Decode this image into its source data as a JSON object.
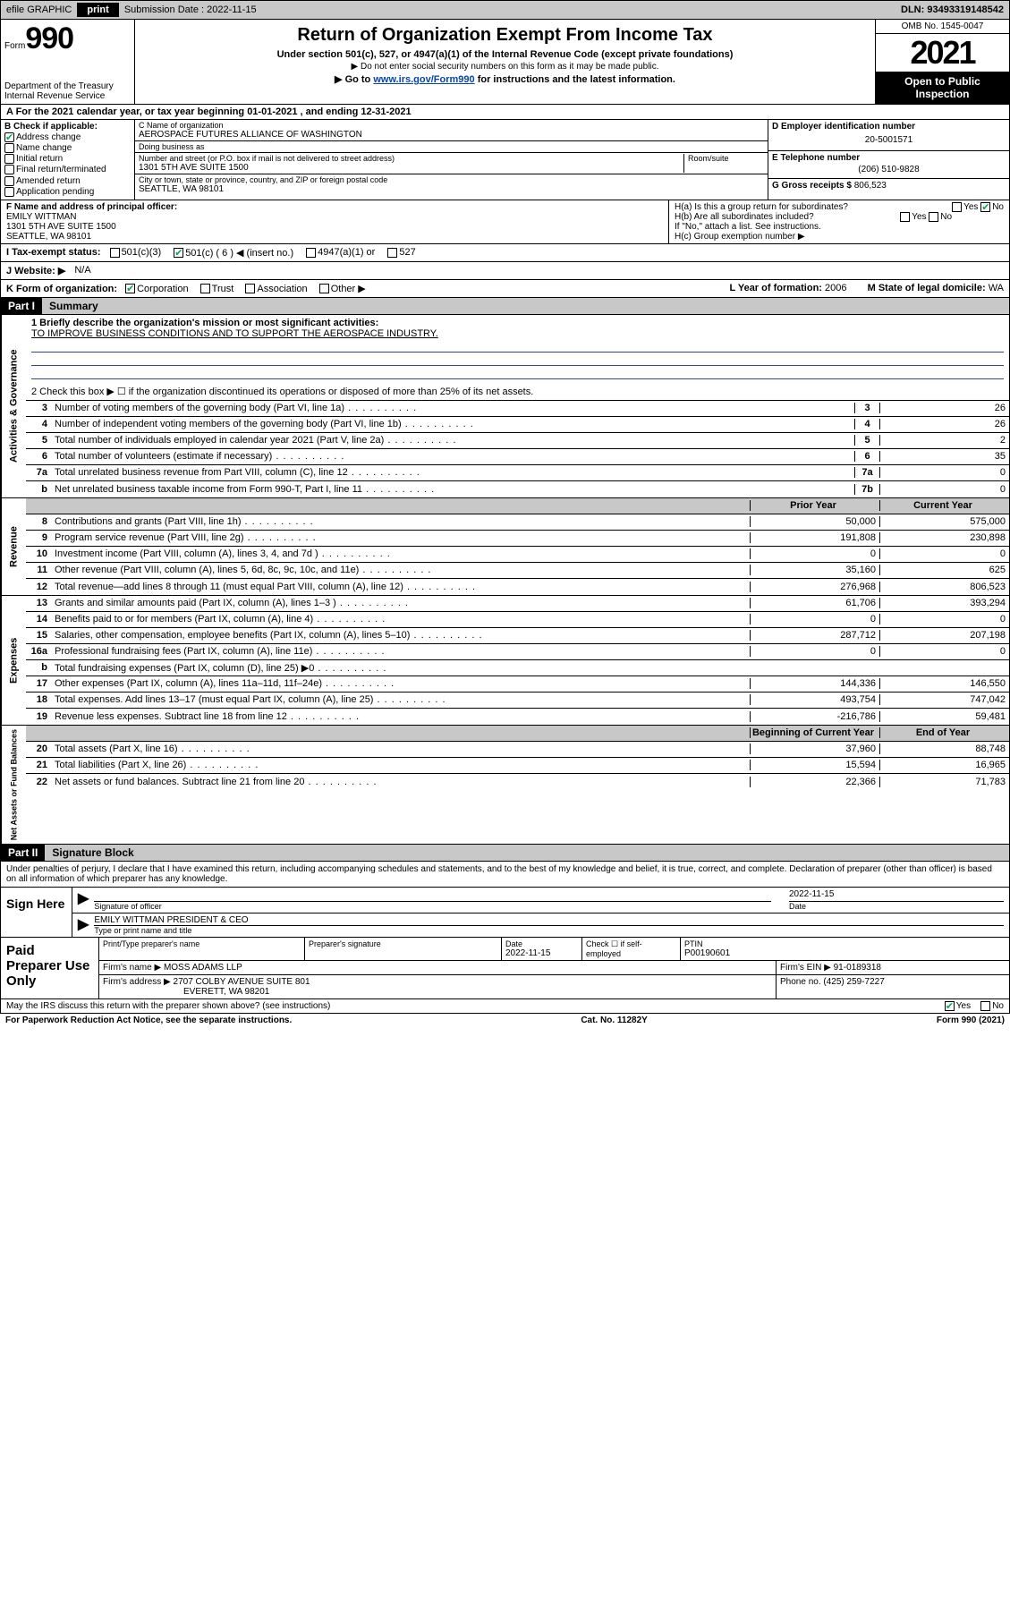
{
  "topbar": {
    "efile": "efile GRAPHIC",
    "print": "print",
    "submission_label": "Submission Date : 2022-11-15",
    "dln": "DLN: 93493319148542"
  },
  "header": {
    "form_prefix": "Form",
    "form_number": "990",
    "dept": "Department of the Treasury\nInternal Revenue Service",
    "title": "Return of Organization Exempt From Income Tax",
    "sub1": "Under section 501(c), 527, or 4947(a)(1) of the Internal Revenue Code (except private foundations)",
    "sub2": "▶ Do not enter social security numbers on this form as it may be made public.",
    "sub3_pre": "▶ Go to ",
    "sub3_link": "www.irs.gov/Form990",
    "sub3_post": " for instructions and the latest information.",
    "omb": "OMB No. 1545-0047",
    "year": "2021",
    "open": "Open to Public Inspection"
  },
  "row_a": "A For the 2021 calendar year, or tax year beginning 01-01-2021   , and ending 12-31-2021",
  "col_b": {
    "label": "B Check if applicable:",
    "items": [
      {
        "txt": "Address change",
        "checked": true
      },
      {
        "txt": "Name change",
        "checked": false
      },
      {
        "txt": "Initial return",
        "checked": false
      },
      {
        "txt": "Final return/terminated",
        "checked": false
      },
      {
        "txt": "Amended return",
        "checked": false
      },
      {
        "txt": "Application pending",
        "checked": false
      }
    ]
  },
  "col_c": {
    "name_hdr": "C Name of organization",
    "name": "AEROSPACE FUTURES ALLIANCE OF WASHINGTON",
    "dba_hdr": "Doing business as",
    "dba": "",
    "addr_hdr": "Number and street (or P.O. box if mail is not delivered to street address)",
    "room_hdr": "Room/suite",
    "addr": "1301 5TH AVE SUITE 1500",
    "city_hdr": "City or town, state or province, country, and ZIP or foreign postal code",
    "city": "SEATTLE, WA  98101"
  },
  "col_de": {
    "d_label": "D Employer identification number",
    "d_val": "20-5001571",
    "e_label": "E Telephone number",
    "e_val": "(206) 510-9828",
    "g_label": "G Gross receipts $",
    "g_val": "806,523"
  },
  "block_f": {
    "f_label": "F Name and address of principal officer:",
    "f_name": "EMILY WITTMAN",
    "f_addr1": "1301 5TH AVE SUITE 1500",
    "f_addr2": "SEATTLE, WA  98101",
    "ha_label": "H(a)  Is this a group return for subordinates?",
    "ha_yes": "Yes",
    "ha_no": "No",
    "hb_label": "H(b)  Are all subordinates included?",
    "hb_note": "If \"No,\" attach a list. See instructions.",
    "hc_label": "H(c)  Group exemption number ▶"
  },
  "row_i": {
    "label": "I   Tax-exempt status:",
    "opts": [
      "501(c)(3)",
      "501(c) ( 6 ) ◀ (insert no.)",
      "4947(a)(1) or",
      "527"
    ]
  },
  "row_j": {
    "label": "J   Website: ▶",
    "val": "N/A"
  },
  "row_k": {
    "k_label": "K Form of organization:",
    "k_opts": [
      "Corporation",
      "Trust",
      "Association",
      "Other ▶"
    ],
    "l_label": "L Year of formation:",
    "l_val": "2006",
    "m_label": "M State of legal domicile:",
    "m_val": "WA"
  },
  "part1": {
    "hdr": "Part I",
    "title": "Summary"
  },
  "summary": {
    "line1_label": "1  Briefly describe the organization's mission or most significant activities:",
    "mission": "TO IMPROVE BUSINESS CONDITIONS AND TO SUPPORT THE AEROSPACE INDUSTRY.",
    "line2": "2   Check this box ▶ ☐  if the organization discontinued its operations or disposed of more than 25% of its net assets."
  },
  "gov_rows": [
    {
      "n": "3",
      "desc": "Number of voting members of the governing body (Part VI, line 1a)",
      "box": "3",
      "val": "26"
    },
    {
      "n": "4",
      "desc": "Number of independent voting members of the governing body (Part VI, line 1b)",
      "box": "4",
      "val": "26"
    },
    {
      "n": "5",
      "desc": "Total number of individuals employed in calendar year 2021 (Part V, line 2a)",
      "box": "5",
      "val": "2"
    },
    {
      "n": "6",
      "desc": "Total number of volunteers (estimate if necessary)",
      "box": "6",
      "val": "35"
    },
    {
      "n": "7a",
      "desc": "Total unrelated business revenue from Part VIII, column (C), line 12",
      "box": "7a",
      "val": "0"
    },
    {
      "n": "b",
      "desc": "Net unrelated business taxable income from Form 990-T, Part I, line 11",
      "box": "7b",
      "val": "0"
    }
  ],
  "rev_hdr": {
    "prior": "Prior Year",
    "curr": "Current Year"
  },
  "rev_rows": [
    {
      "n": "8",
      "desc": "Contributions and grants (Part VIII, line 1h)",
      "prior": "50,000",
      "curr": "575,000"
    },
    {
      "n": "9",
      "desc": "Program service revenue (Part VIII, line 2g)",
      "prior": "191,808",
      "curr": "230,898"
    },
    {
      "n": "10",
      "desc": "Investment income (Part VIII, column (A), lines 3, 4, and 7d )",
      "prior": "0",
      "curr": "0"
    },
    {
      "n": "11",
      "desc": "Other revenue (Part VIII, column (A), lines 5, 6d, 8c, 9c, 10c, and 11e)",
      "prior": "35,160",
      "curr": "625"
    },
    {
      "n": "12",
      "desc": "Total revenue—add lines 8 through 11 (must equal Part VIII, column (A), line 12)",
      "prior": "276,968",
      "curr": "806,523"
    }
  ],
  "exp_rows": [
    {
      "n": "13",
      "desc": "Grants and similar amounts paid (Part IX, column (A), lines 1–3 )",
      "prior": "61,706",
      "curr": "393,294"
    },
    {
      "n": "14",
      "desc": "Benefits paid to or for members (Part IX, column (A), line 4)",
      "prior": "0",
      "curr": "0"
    },
    {
      "n": "15",
      "desc": "Salaries, other compensation, employee benefits (Part IX, column (A), lines 5–10)",
      "prior": "287,712",
      "curr": "207,198"
    },
    {
      "n": "16a",
      "desc": "Professional fundraising fees (Part IX, column (A), line 11e)",
      "prior": "0",
      "curr": "0"
    },
    {
      "n": "b",
      "desc": "Total fundraising expenses (Part IX, column (D), line 25) ▶0",
      "prior": "",
      "curr": "",
      "shade": true
    },
    {
      "n": "17",
      "desc": "Other expenses (Part IX, column (A), lines 11a–11d, 11f–24e)",
      "prior": "144,336",
      "curr": "146,550"
    },
    {
      "n": "18",
      "desc": "Total expenses. Add lines 13–17 (must equal Part IX, column (A), line 25)",
      "prior": "493,754",
      "curr": "747,042"
    },
    {
      "n": "19",
      "desc": "Revenue less expenses. Subtract line 18 from line 12",
      "prior": "-216,786",
      "curr": "59,481"
    }
  ],
  "net_hdr": {
    "prior": "Beginning of Current Year",
    "curr": "End of Year"
  },
  "net_rows": [
    {
      "n": "20",
      "desc": "Total assets (Part X, line 16)",
      "prior": "37,960",
      "curr": "88,748"
    },
    {
      "n": "21",
      "desc": "Total liabilities (Part X, line 26)",
      "prior": "15,594",
      "curr": "16,965"
    },
    {
      "n": "22",
      "desc": "Net assets or fund balances. Subtract line 21 from line 20",
      "prior": "22,366",
      "curr": "71,783"
    }
  ],
  "part2": {
    "hdr": "Part II",
    "title": "Signature Block"
  },
  "sig": {
    "decl": "Under penalties of perjury, I declare that I have examined this return, including accompanying schedules and statements, and to the best of my knowledge and belief, it is true, correct, and complete. Declaration of preparer (other than officer) is based on all information of which preparer has any knowledge.",
    "sign_here": "Sign Here",
    "sig_officer": "Signature of officer",
    "date_label": "Date",
    "date": "2022-11-15",
    "name_title": "EMILY WITTMAN  PRESIDENT & CEO",
    "type_name": "Type or print name and title"
  },
  "prep": {
    "label": "Paid Preparer Use Only",
    "hdr_name": "Print/Type preparer's name",
    "hdr_sig": "Preparer's signature",
    "hdr_date": "Date",
    "date": "2022-11-15",
    "hdr_check": "Check ☐ if self-employed",
    "hdr_ptin": "PTIN",
    "ptin": "P00190601",
    "firm_name_lbl": "Firm's name    ▶",
    "firm_name": "MOSS ADAMS LLP",
    "firm_ein_lbl": "Firm's EIN ▶",
    "firm_ein": "91-0189318",
    "firm_addr_lbl": "Firm's address ▶",
    "firm_addr1": "2707 COLBY AVENUE SUITE 801",
    "firm_addr2": "EVERETT, WA  98201",
    "phone_lbl": "Phone no.",
    "phone": "(425) 259-7227"
  },
  "footer": {
    "discuss": "May the IRS discuss this return with the preparer shown above? (see instructions)",
    "yes": "Yes",
    "no": "No",
    "paperwork": "For Paperwork Reduction Act Notice, see the separate instructions.",
    "cat": "Cat. No. 11282Y",
    "form": "Form 990 (2021)"
  },
  "side_labels": {
    "gov": "Activities & Governance",
    "rev": "Revenue",
    "exp": "Expenses",
    "net": "Net Assets or Fund Balances"
  }
}
